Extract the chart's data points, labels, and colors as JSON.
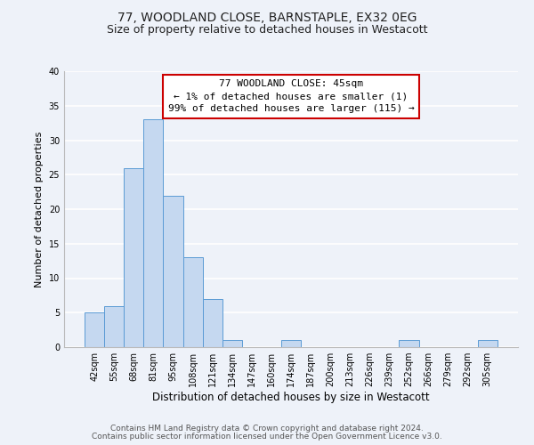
{
  "title": "77, WOODLAND CLOSE, BARNSTAPLE, EX32 0EG",
  "subtitle": "Size of property relative to detached houses in Westacott",
  "xlabel": "Distribution of detached houses by size in Westacott",
  "ylabel": "Number of detached properties",
  "bar_labels": [
    "42sqm",
    "55sqm",
    "68sqm",
    "81sqm",
    "95sqm",
    "108sqm",
    "121sqm",
    "134sqm",
    "147sqm",
    "160sqm",
    "174sqm",
    "187sqm",
    "200sqm",
    "213sqm",
    "226sqm",
    "239sqm",
    "252sqm",
    "266sqm",
    "279sqm",
    "292sqm",
    "305sqm"
  ],
  "bar_values": [
    5,
    6,
    26,
    33,
    22,
    13,
    7,
    1,
    0,
    0,
    1,
    0,
    0,
    0,
    0,
    0,
    1,
    0,
    0,
    0,
    1
  ],
  "bar_color": "#c5d8f0",
  "bar_edge_color": "#5b9bd5",
  "ylim": [
    0,
    40
  ],
  "yticks": [
    0,
    5,
    10,
    15,
    20,
    25,
    30,
    35,
    40
  ],
  "annotation_line1": "77 WOODLAND CLOSE: 45sqm",
  "annotation_line2": "← 1% of detached houses are smaller (1)",
  "annotation_line3": "99% of detached houses are larger (115) →",
  "annotation_box_color": "#ffffff",
  "annotation_box_edge_color": "#cc0000",
  "footer_line1": "Contains HM Land Registry data © Crown copyright and database right 2024.",
  "footer_line2": "Contains public sector information licensed under the Open Government Licence v3.0.",
  "bg_color": "#eef2f9",
  "plot_bg_color": "#eef2f9",
  "grid_color": "#ffffff",
  "title_fontsize": 10,
  "subtitle_fontsize": 9,
  "xlabel_fontsize": 8.5,
  "ylabel_fontsize": 8,
  "tick_fontsize": 7,
  "annotation_fontsize": 8,
  "footer_fontsize": 6.5
}
